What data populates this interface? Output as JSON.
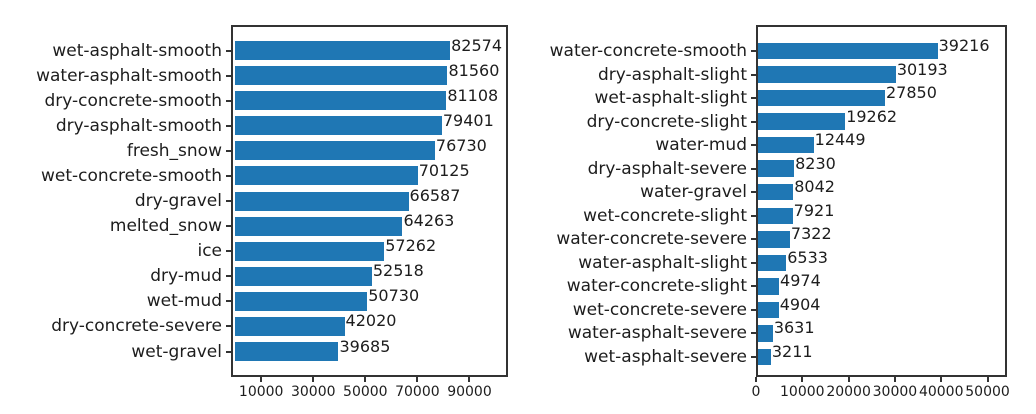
{
  "figure": {
    "background": "#ffffff"
  },
  "chart_data": [
    {
      "type": "bar",
      "orientation": "horizontal",
      "title": "",
      "xlabel": "",
      "ylabel": "",
      "grid": false,
      "bar_color": "#1f77b4",
      "axis_color": "#333333",
      "text_color": "#1d1d1d",
      "categories": [
        "wet-asphalt-smooth",
        "water-asphalt-smooth",
        "dry-concrete-smooth",
        "dry-asphalt-smooth",
        "fresh_snow",
        "wet-concrete-smooth",
        "dry-gravel",
        "melted_snow",
        "ice",
        "dry-mud",
        "wet-mud",
        "dry-concrete-severe",
        "wet-gravel"
      ],
      "values": [
        82574,
        81560,
        81108,
        79401,
        76730,
        70125,
        66587,
        64263,
        57262,
        52518,
        50730,
        42020,
        39685
      ],
      "value_labels": [
        "82574",
        "81560",
        "81108",
        "79401",
        "76730",
        "70125",
        "66587",
        "64263",
        "57262",
        "52518",
        "50730",
        "42020",
        "39685"
      ],
      "x_ticks": [
        10000,
        30000,
        50000,
        70000,
        90000
      ],
      "x_tick_labels": [
        "10000",
        "30000",
        "50000",
        "70000",
        "90000"
      ],
      "xlim": [
        -1600,
        104800
      ]
    },
    {
      "type": "bar",
      "orientation": "horizontal",
      "title": "",
      "xlabel": "",
      "ylabel": "",
      "grid": false,
      "bar_color": "#1f77b4",
      "axis_color": "#333333",
      "text_color": "#1d1d1d",
      "categories": [
        "water-concrete-smooth",
        "dry-asphalt-slight",
        "wet-asphalt-slight",
        "dry-concrete-slight",
        "water-mud",
        "dry-asphalt-severe",
        "water-gravel",
        "wet-concrete-slight",
        "water-concrete-severe",
        "water-asphalt-slight",
        "water-concrete-slight",
        "wet-concrete-severe",
        "water-asphalt-severe",
        "wet-asphalt-severe"
      ],
      "values": [
        39216,
        30193,
        27850,
        19262,
        12449,
        8230,
        8042,
        7921,
        7322,
        6533,
        4974,
        4904,
        3631,
        3211
      ],
      "value_labels": [
        "39216",
        "30193",
        "27850",
        "19262",
        "12449",
        "8230",
        "8042",
        "7921",
        "7322",
        "6533",
        "4974",
        "4904",
        "3631",
        "3211"
      ],
      "x_ticks": [
        0,
        10000,
        20000,
        30000,
        40000,
        50000
      ],
      "x_tick_labels": [
        "0",
        "10000",
        "20000",
        "30000",
        "40000",
        "50000"
      ],
      "xlim": [
        0,
        54200
      ]
    }
  ]
}
